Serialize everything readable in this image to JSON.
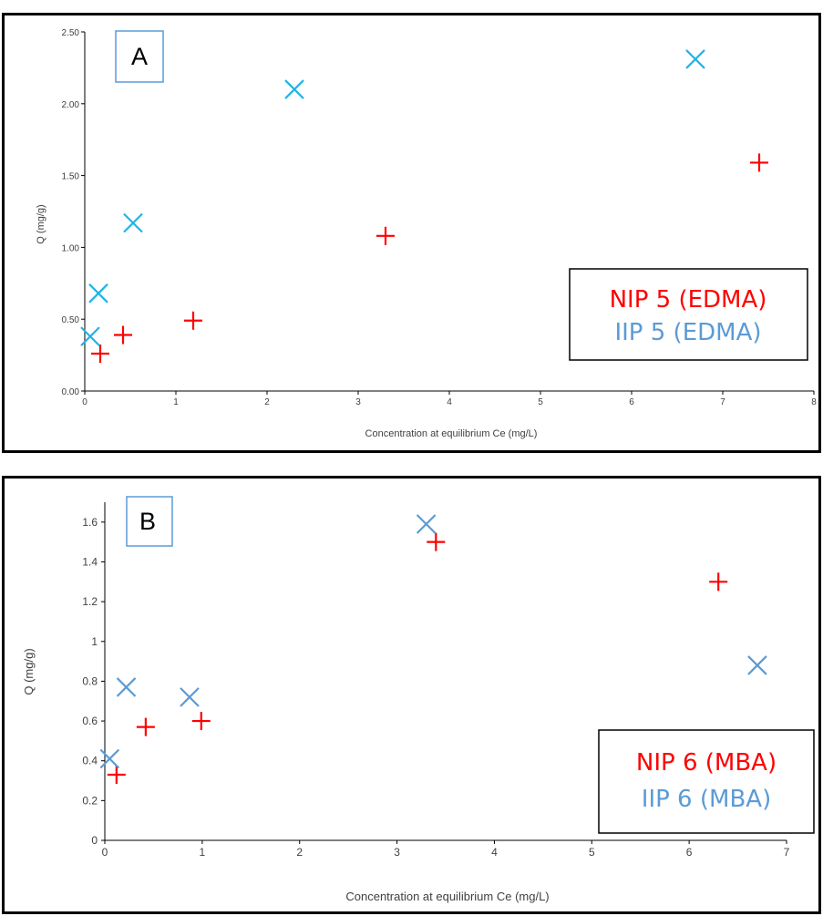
{
  "chart_data": [
    {
      "type": "scatter",
      "panel_label": "A",
      "xlabel": "Concentration at equilibrium Ce (mg/L)",
      "ylabel": "Q (mg/g)",
      "xlim": [
        0,
        8
      ],
      "ylim": [
        0,
        2.5
      ],
      "x_ticks": [
        "0",
        "1",
        "2",
        "3",
        "4",
        "5",
        "6",
        "7",
        "8"
      ],
      "y_ticks": [
        "0.00",
        "0.50",
        "1.00",
        "1.50",
        "2.00",
        "2.50"
      ],
      "grid": false,
      "legend_position": "right",
      "series": [
        {
          "name": "NIP 5 (EDMA)",
          "marker": "plus",
          "color": "#ff0000",
          "points": [
            [
              0.17,
              0.26
            ],
            [
              0.42,
              0.39
            ],
            [
              1.19,
              0.49
            ],
            [
              3.3,
              1.08
            ],
            [
              7.4,
              1.59
            ]
          ]
        },
        {
          "name": "IIP 5 (EDMA)",
          "marker": "x",
          "color": "#1fb4e6",
          "legend_color": "#5b9bd5",
          "points": [
            [
              0.06,
              0.38
            ],
            [
              0.15,
              0.68
            ],
            [
              0.53,
              1.17
            ],
            [
              2.3,
              2.1
            ],
            [
              6.7,
              2.31
            ]
          ]
        }
      ]
    },
    {
      "type": "scatter",
      "panel_label": "B",
      "xlabel": "Concentration at equilibrium Ce (mg/L)",
      "ylabel": "Q (mg/g)",
      "xlim": [
        0,
        7
      ],
      "ylim": [
        0,
        1.7
      ],
      "x_ticks": [
        "0",
        "1",
        "2",
        "3",
        "4",
        "5",
        "6",
        "7"
      ],
      "y_ticks": [
        "0",
        "0.2",
        "0.4",
        "0.6",
        "0.8",
        "1",
        "1.2",
        "1.4",
        "1.6"
      ],
      "grid": false,
      "legend_position": "right",
      "series": [
        {
          "name": "NIP 6 (MBA)",
          "marker": "plus",
          "color": "#ff0000",
          "points": [
            [
              0.12,
              0.33
            ],
            [
              0.42,
              0.57
            ],
            [
              0.99,
              0.6
            ],
            [
              3.4,
              1.5
            ],
            [
              6.3,
              1.3
            ]
          ]
        },
        {
          "name": "IIP 6 (MBA)",
          "marker": "x",
          "color": "#5b9bd5",
          "legend_color": "#5b9bd5",
          "points": [
            [
              0.05,
              0.41
            ],
            [
              0.22,
              0.77
            ],
            [
              0.87,
              0.72
            ],
            [
              3.3,
              1.59
            ],
            [
              6.7,
              0.88
            ]
          ]
        }
      ]
    }
  ]
}
